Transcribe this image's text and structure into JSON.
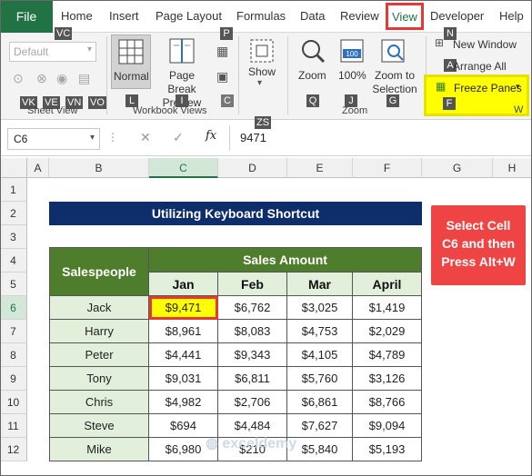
{
  "tabs": {
    "file": "File",
    "home": "Home",
    "insert": "Insert",
    "page_layout": "Page Layout",
    "formulas": "Formulas",
    "data": "Data",
    "review": "Review",
    "view": "View",
    "developer": "Developer",
    "help": "Help"
  },
  "keytips": {
    "vc": "VC",
    "p": "P",
    "n": "N",
    "a": "A",
    "f": "F",
    "zs": "ZS",
    "vk": "VK",
    "ve": "VE",
    "vn": "VN",
    "vo": "VO",
    "l": "L",
    "i": "I",
    "c": "C",
    "q": "Q",
    "j": "J",
    "g": "G",
    "w": "W"
  },
  "ribbon": {
    "sheet_view_default": "Default",
    "sheet_view_label": "Sheet View",
    "normal": "Normal",
    "page_break_preview": "Page Break Preview",
    "workbook_views_label": "Workbook Views",
    "show": "Show",
    "zoom": "Zoom",
    "zoom_100": "100%",
    "zoom_to_selection": "Zoom to Selection",
    "zoom_group_label": "Zoom",
    "new_window": "New Window",
    "arrange_all": "Arrange All",
    "freeze_panes": "Freeze Panes",
    "window_label": "W"
  },
  "formula_bar": {
    "name_box": "C6",
    "fx": "fx",
    "value": "9471"
  },
  "columns": [
    "A",
    "B",
    "C",
    "D",
    "E",
    "F",
    "G",
    "H"
  ],
  "rows": [
    "1",
    "2",
    "3",
    "4",
    "5",
    "6",
    "7",
    "8",
    "9",
    "10",
    "11",
    "12"
  ],
  "sheet": {
    "title": "Utilizing Keyboard Shortcut",
    "salespeople_header": "Salespeople",
    "sales_amount_header": "Sales Amount",
    "months": [
      "Jan",
      "Feb",
      "Mar",
      "April"
    ],
    "data": [
      {
        "name": "Jack",
        "values": [
          "$9,471",
          "$6,762",
          "$3,025",
          "$1,419"
        ]
      },
      {
        "name": "Harry",
        "values": [
          "$8,961",
          "$8,083",
          "$4,753",
          "$2,029"
        ]
      },
      {
        "name": "Peter",
        "values": [
          "$4,441",
          "$9,343",
          "$4,105",
          "$4,789"
        ]
      },
      {
        "name": "Tony",
        "values": [
          "$9,031",
          "$6,811",
          "$5,760",
          "$3,126"
        ]
      },
      {
        "name": "Chris",
        "values": [
          "$4,982",
          "$2,706",
          "$6,861",
          "$8,766"
        ]
      },
      {
        "name": "Steve",
        "values": [
          "$694",
          "$4,484",
          "$7,627",
          "$9,094"
        ]
      },
      {
        "name": "Mike",
        "values": [
          "$6,980",
          "$210",
          "$5,840",
          "$5,193"
        ]
      }
    ],
    "callout": "Select Cell C6 and then Press Alt+W",
    "watermark": "exceldemy"
  },
  "colors": {
    "excel_green": "#217346",
    "title_bar": "#0e2d6b",
    "table_header": "#4e7d2b",
    "table_light": "#e2efda",
    "callout_red": "#ef4444",
    "highlight_yellow": "#ffff00",
    "selection_border": "#e53935"
  }
}
